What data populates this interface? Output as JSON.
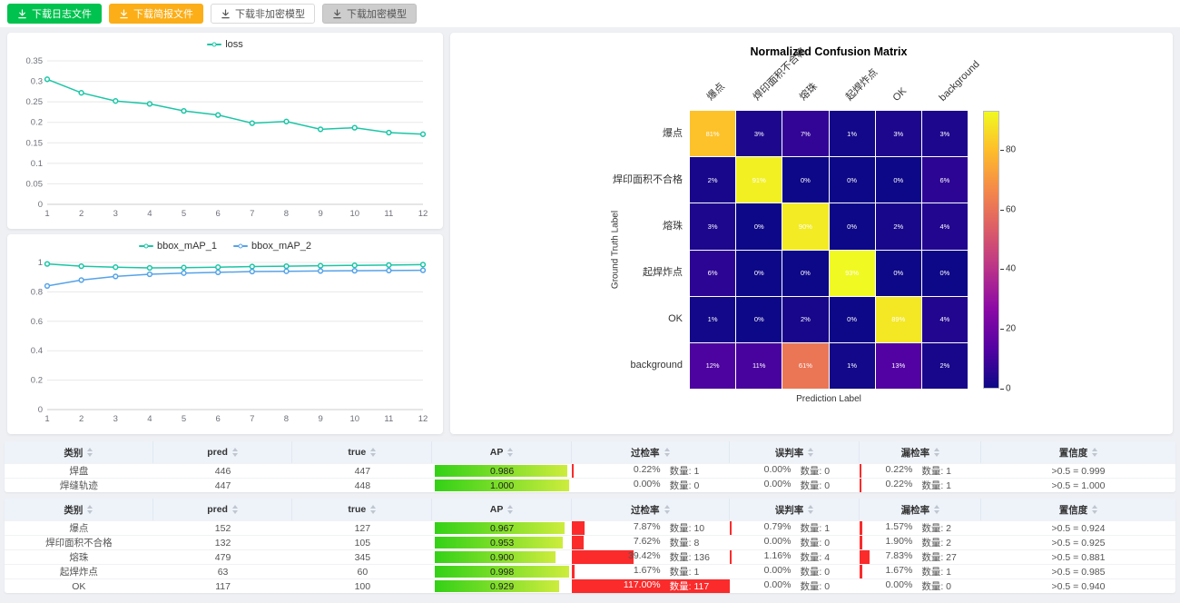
{
  "toolbar": {
    "buttons": [
      {
        "label": "下载日志文件",
        "style": "green",
        "icon": "download-icon"
      },
      {
        "label": "下载简报文件",
        "style": "orange",
        "icon": "download-icon"
      },
      {
        "label": "下载非加密模型",
        "style": "plain",
        "icon": "download-icon"
      },
      {
        "label": "下载加密模型",
        "style": "gray",
        "icon": "download-icon"
      }
    ]
  },
  "colors": {
    "green_button": "#00c24e",
    "orange_button": "#fbae17",
    "button_border": "#d9d9d9",
    "gray_button_bg": "#cdcdcd",
    "gray_button_text": "#555555",
    "rate_bar_red": "#fb2b2b",
    "ap_bar_start": "#33d117",
    "ap_bar_end": "#cdec3d",
    "table_header_bg": "#eef3fa",
    "grid_line": "#e8e8e8"
  },
  "chart_data": [
    {
      "type": "line",
      "title": "loss",
      "legend_position": "top",
      "grid": true,
      "x": [
        1,
        2,
        3,
        4,
        5,
        6,
        7,
        8,
        9,
        10,
        11,
        12
      ],
      "series": [
        {
          "name": "loss",
          "color": "#1cc5a6",
          "values": [
            0.305,
            0.272,
            0.252,
            0.245,
            0.228,
            0.218,
            0.198,
            0.202,
            0.183,
            0.187,
            0.175,
            0.171
          ]
        }
      ],
      "ylim": [
        0,
        0.35
      ],
      "yticks": [
        0,
        0.05,
        0.1,
        0.15,
        0.2,
        0.25,
        0.3,
        0.35
      ]
    },
    {
      "type": "line",
      "title": "",
      "legend_position": "top",
      "grid": true,
      "x": [
        1,
        2,
        3,
        4,
        5,
        6,
        7,
        8,
        9,
        10,
        11,
        12
      ],
      "series": [
        {
          "name": "bbox_mAP_1",
          "color": "#1cc5a6",
          "values": [
            0.99,
            0.975,
            0.968,
            0.963,
            0.965,
            0.968,
            0.972,
            0.975,
            0.978,
            0.98,
            0.982,
            0.985
          ]
        },
        {
          "name": "bbox_mAP_2",
          "color": "#56a3e8",
          "values": [
            0.84,
            0.88,
            0.905,
            0.92,
            0.928,
            0.933,
            0.938,
            0.94,
            0.942,
            0.944,
            0.945,
            0.947
          ]
        }
      ],
      "ylim": [
        0,
        1
      ],
      "yticks": [
        0,
        0.2,
        0.4,
        0.6,
        0.8,
        1
      ]
    },
    {
      "type": "heatmap",
      "title": "Normalized Confusion Matrix",
      "xlabel": "Prediction Label",
      "ylabel": "Ground Truth Label",
      "labels": [
        "爆点",
        "焊印面积不合格",
        "熔珠",
        "起焊炸点",
        "OK",
        "background"
      ],
      "unit": "%",
      "values": [
        [
          81,
          3,
          7,
          1,
          3,
          3
        ],
        [
          2,
          91,
          0,
          0,
          0,
          6
        ],
        [
          3,
          0,
          90,
          0,
          2,
          4
        ],
        [
          6,
          0,
          0,
          93,
          0,
          0
        ],
        [
          1,
          0,
          2,
          0,
          89,
          4
        ],
        [
          12,
          11,
          61,
          1,
          13,
          2
        ]
      ],
      "colormap": "plasma",
      "colorbar": {
        "min": 0,
        "max": 93,
        "ticks": [
          0,
          20,
          40,
          60,
          80
        ],
        "position": "right"
      }
    }
  ],
  "table_columns": [
    {
      "key": "class",
      "label": "类别"
    },
    {
      "key": "pred",
      "label": "pred"
    },
    {
      "key": "true",
      "label": "true"
    },
    {
      "key": "ap",
      "label": "AP"
    },
    {
      "key": "over",
      "label": "过检率"
    },
    {
      "key": "mis",
      "label": "误判率"
    },
    {
      "key": "miss",
      "label": "漏检率"
    },
    {
      "key": "conf",
      "label": "置信度"
    }
  ],
  "tables": [
    {
      "rows": [
        {
          "class": "焊盘",
          "pred": "446",
          "true": "447",
          "ap": "0.986",
          "over": {
            "pct": "0.22%",
            "count": "数量: 1",
            "value": 0.22
          },
          "mis": {
            "pct": "0.00%",
            "count": "数量: 0",
            "value": 0
          },
          "miss": {
            "pct": "0.22%",
            "count": "数量: 1",
            "value": 0.22
          },
          "conf": ">0.5 = 0.999"
        },
        {
          "class": "焊缝轨迹",
          "pred": "447",
          "true": "448",
          "ap": "1.000",
          "over": {
            "pct": "0.00%",
            "count": "数量: 0",
            "value": 0
          },
          "mis": {
            "pct": "0.00%",
            "count": "数量: 0",
            "value": 0
          },
          "miss": {
            "pct": "0.22%",
            "count": "数量: 1",
            "value": 0.22
          },
          "conf": ">0.5 = 1.000"
        }
      ]
    },
    {
      "rows": [
        {
          "class": "爆点",
          "pred": "152",
          "true": "127",
          "ap": "0.967",
          "over": {
            "pct": "7.87%",
            "count": "数量: 10",
            "value": 7.87
          },
          "mis": {
            "pct": "0.79%",
            "count": "数量: 1",
            "value": 0.79
          },
          "miss": {
            "pct": "1.57%",
            "count": "数量: 2",
            "value": 1.57
          },
          "conf": ">0.5 = 0.924"
        },
        {
          "class": "焊印面积不合格",
          "pred": "132",
          "true": "105",
          "ap": "0.953",
          "over": {
            "pct": "7.62%",
            "count": "数量: 8",
            "value": 7.62
          },
          "mis": {
            "pct": "0.00%",
            "count": "数量: 0",
            "value": 0
          },
          "miss": {
            "pct": "1.90%",
            "count": "数量: 2",
            "value": 1.9
          },
          "conf": ">0.5 = 0.925"
        },
        {
          "class": "熔珠",
          "pred": "479",
          "true": "345",
          "ap": "0.900",
          "over": {
            "pct": "39.42%",
            "count": "数量: 136",
            "value": 39.42
          },
          "mis": {
            "pct": "1.16%",
            "count": "数量: 4",
            "value": 1.16
          },
          "miss": {
            "pct": "7.83%",
            "count": "数量: 27",
            "value": 7.83
          },
          "conf": ">0.5 = 0.881"
        },
        {
          "class": "起焊炸点",
          "pred": "63",
          "true": "60",
          "ap": "0.998",
          "over": {
            "pct": "1.67%",
            "count": "数量: 1",
            "value": 1.67
          },
          "mis": {
            "pct": "0.00%",
            "count": "数量: 0",
            "value": 0
          },
          "miss": {
            "pct": "1.67%",
            "count": "数量: 1",
            "value": 1.67
          },
          "conf": ">0.5 = 0.985"
        },
        {
          "class": "OK",
          "pred": "117",
          "true": "100",
          "ap": "0.929",
          "over": {
            "pct": "117.00%",
            "count": "数量: 117",
            "value": 117
          },
          "mis": {
            "pct": "0.00%",
            "count": "数量: 0",
            "value": 0
          },
          "miss": {
            "pct": "0.00%",
            "count": "数量: 0",
            "value": 0
          },
          "conf": ">0.5 = 0.940"
        }
      ]
    }
  ]
}
